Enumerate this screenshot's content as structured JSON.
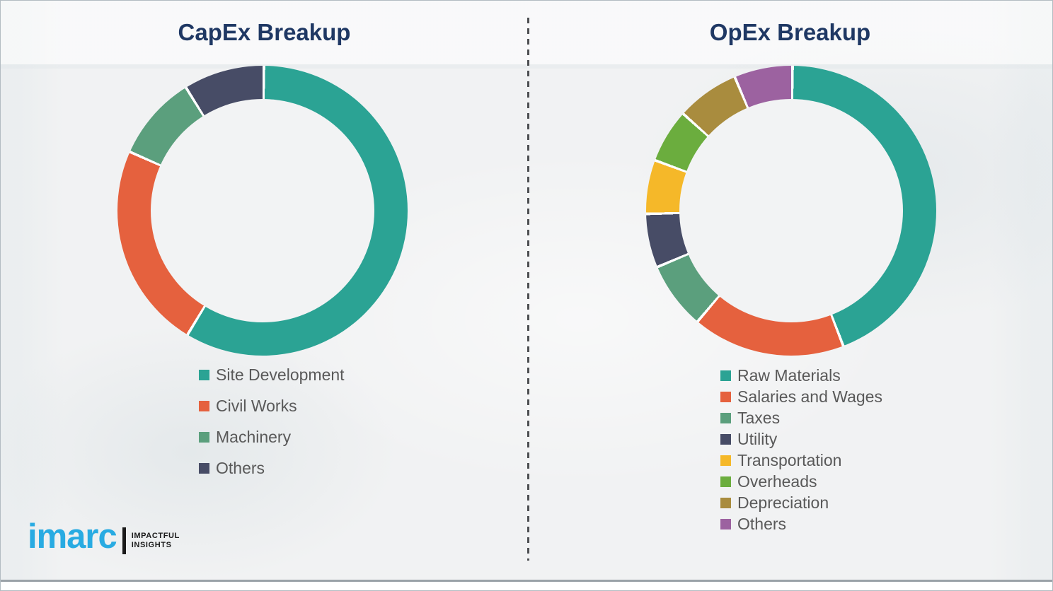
{
  "page": {
    "left_title": "CapEx Breakup",
    "right_title": "OpEx Breakup"
  },
  "chart_data": [
    {
      "type": "pie",
      "donut": true,
      "title": "CapEx Breakup",
      "unit": "percent (estimated from arc angles; no data labels shown)",
      "legend_position": "below-left",
      "start_angle_deg": 0,
      "direction": "clockwise",
      "categories": [
        "Site Development",
        "Civil Works",
        "Machinery",
        "Others"
      ],
      "values": [
        58.5,
        23,
        9.5,
        9
      ],
      "colors": [
        "#2ba394",
        "#e5613e",
        "#5b9f7d",
        "#474c66"
      ]
    },
    {
      "type": "pie",
      "donut": true,
      "title": "OpEx Breakup",
      "unit": "percent (estimated from arc angles; no data labels shown)",
      "legend_position": "below-left",
      "start_angle_deg": 0,
      "direction": "clockwise",
      "categories": [
        "Raw Materials",
        "Salaries and Wages",
        "Taxes",
        "Utility",
        "Transportation",
        "Overheads",
        "Depreciation",
        "Others"
      ],
      "values": [
        44,
        17,
        7.5,
        6,
        6,
        6,
        7,
        6.5
      ],
      "colors": [
        "#2ba394",
        "#e5613e",
        "#5b9f7d",
        "#474c66",
        "#f5b829",
        "#6bad3e",
        "#a98c3e",
        "#9c62a0"
      ]
    }
  ],
  "logo": {
    "brand": "imarc",
    "tagline_line1": "IMPACTFUL",
    "tagline_line2": "INSIGHTS",
    "brand_color": "#29abe2"
  },
  "styles": {
    "title_color": "#1f3864",
    "legend_text_color": "#595959",
    "background": "#f1f2f3"
  }
}
